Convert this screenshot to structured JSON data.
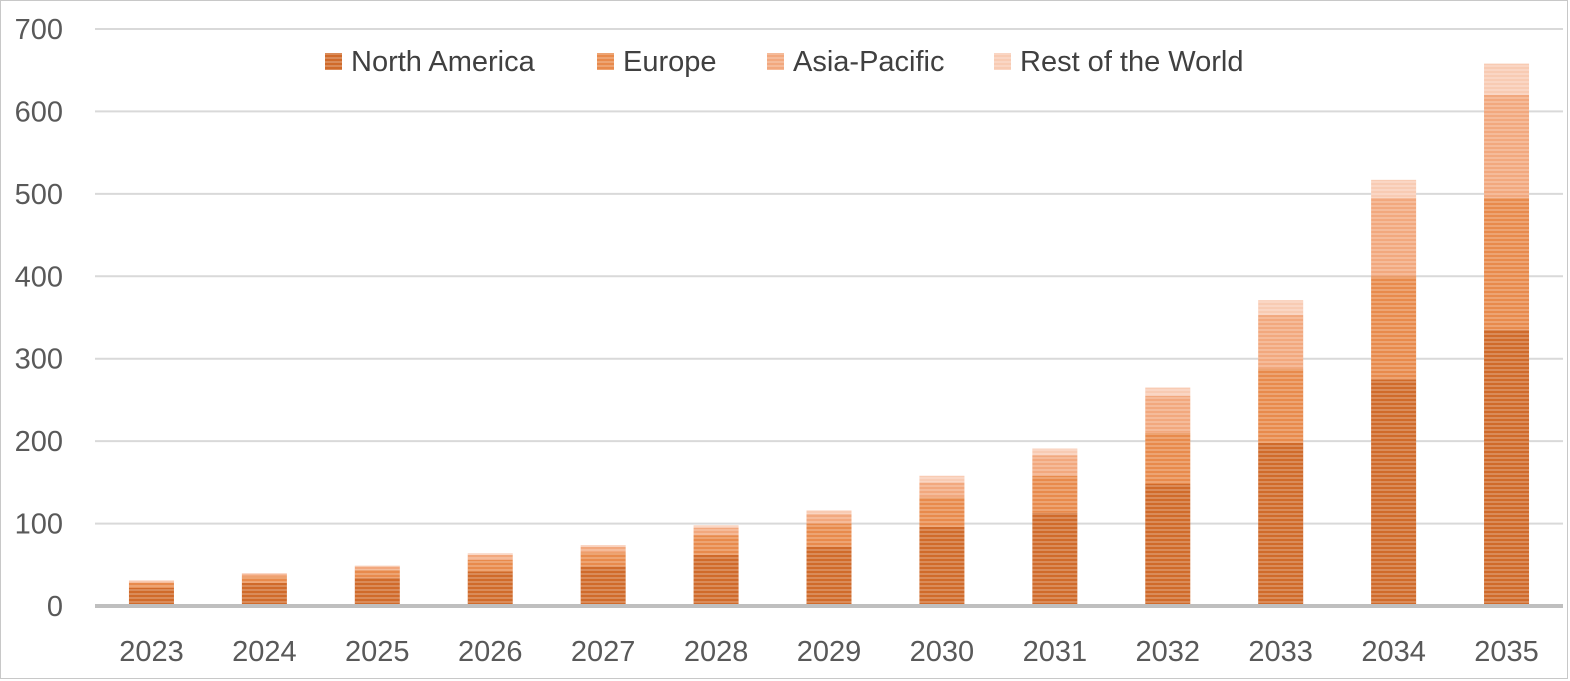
{
  "chart_data": {
    "type": "bar",
    "stacked": true,
    "categories": [
      "2023",
      "2024",
      "2025",
      "2026",
      "2027",
      "2028",
      "2029",
      "2030",
      "2031",
      "2032",
      "2033",
      "2034",
      "2035"
    ],
    "series": [
      {
        "name": "North America",
        "color": "#d06a2a",
        "values": [
          22,
          28,
          34,
          42,
          48,
          62,
          72,
          96,
          113,
          148,
          198,
          275,
          335
        ]
      },
      {
        "name": "Europe",
        "color": "#e88a4c",
        "values": [
          6,
          8,
          10,
          14,
          17,
          24,
          28,
          36,
          45,
          62,
          90,
          125,
          160
        ]
      },
      {
        "name": "Asia-Pacific",
        "color": "#f2a87e",
        "values": [
          2,
          3,
          4,
          6,
          7,
          9,
          12,
          18,
          25,
          45,
          65,
          95,
          125
        ]
      },
      {
        "name": "Rest of the World",
        "color": "#f8cbb3",
        "values": [
          1,
          1,
          1,
          2,
          2,
          3,
          4,
          8,
          8,
          10,
          18,
          22,
          38
        ]
      }
    ],
    "ylim": [
      0,
      700
    ],
    "yticks": [
      "0",
      "100",
      "200",
      "300",
      "400",
      "500",
      "600",
      "700"
    ],
    "grid": true,
    "legend_position": "top-center",
    "title": "",
    "xlabel": "",
    "ylabel": ""
  }
}
